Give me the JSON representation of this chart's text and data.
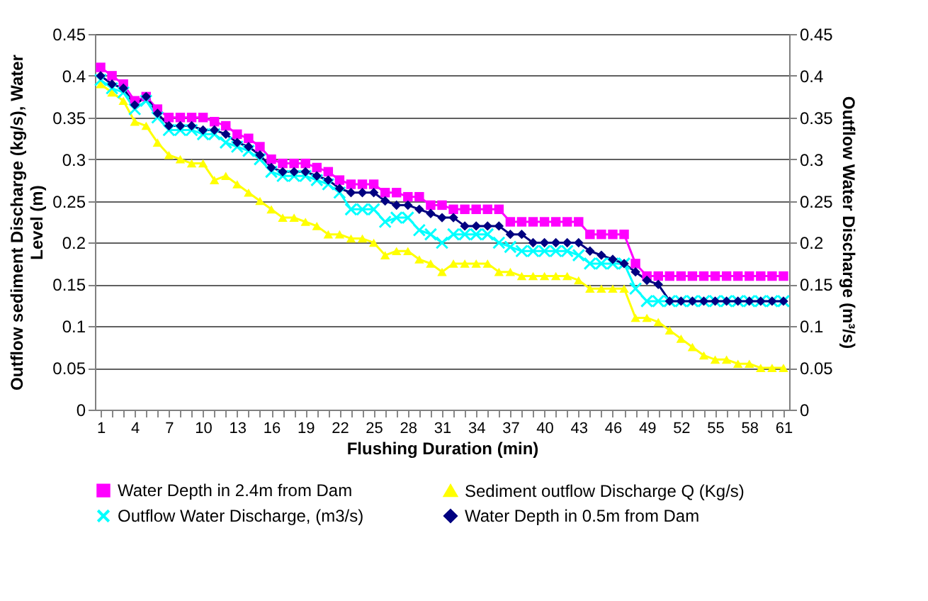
{
  "chart_data": {
    "type": "line",
    "xlabel": "Flushing Duration (min)",
    "ylabel": "Outflow sediment Discharge (kg/s), Water Level (m)",
    "y2label": "Outflow Water Discharge (m³/s)",
    "categories": [
      "1",
      null,
      null,
      "4",
      null,
      null,
      "7",
      null,
      null,
      "10",
      null,
      null,
      "13",
      null,
      null,
      "16",
      null,
      null,
      "19",
      null,
      null,
      "22",
      null,
      null,
      "25",
      null,
      null,
      "28",
      null,
      null,
      "31",
      null,
      null,
      "34",
      null,
      null,
      "37",
      null,
      null,
      "40",
      null,
      null,
      "43",
      null,
      null,
      "46",
      null,
      null,
      "49",
      null,
      null,
      "52",
      null,
      null,
      "55",
      null,
      null,
      "58",
      null,
      null,
      "61"
    ],
    "ylim": [
      0,
      0.45
    ],
    "yticks": [
      {
        "value": 0,
        "label": "0"
      },
      0.05,
      {
        "value": 0.1,
        "label": "0.1"
      },
      0.15,
      {
        "value": 0.2,
        "label": "0.2"
      },
      0.25,
      {
        "value": 0.3,
        "label": "0.3"
      },
      0.35,
      {
        "value": 0.4,
        "label": "0.4"
      },
      0.45
    ],
    "y2lim": [
      0,
      0.45
    ],
    "y2ticks": [
      {
        "value": 0,
        "label": "0"
      },
      0.05,
      {
        "value": 0.1,
        "label": "0.1"
      },
      0.15,
      {
        "value": 0.2,
        "label": "0.2"
      },
      0.25,
      {
        "value": 0.3,
        "label": "0.3"
      },
      0.35,
      {
        "value": 0.4,
        "label": "0.4"
      },
      0.45
    ],
    "grid": "y",
    "legend": "bottom",
    "line_style": "solid",
    "series": [
      {
        "name": "Water Depth in 2.4m from Dam",
        "color": "#ff00ff",
        "marker": "square",
        "values": [
          0.41,
          0.4,
          0.39,
          0.37,
          0.375,
          0.36,
          0.35,
          0.35,
          0.35,
          0.35,
          0.345,
          0.34,
          0.33,
          0.325,
          0.315,
          0.3,
          0.295,
          0.295,
          0.295,
          0.29,
          0.285,
          0.275,
          0.27,
          0.27,
          0.27,
          0.26,
          0.26,
          0.255,
          0.255,
          0.245,
          0.245,
          0.24,
          0.24,
          0.24,
          0.24,
          0.24,
          0.225,
          0.225,
          0.225,
          0.225,
          0.225,
          0.225,
          0.225,
          0.21,
          0.21,
          0.21,
          0.21,
          0.175,
          0.16,
          0.16,
          0.16,
          0.16,
          0.16,
          0.16,
          0.16,
          0.16,
          0.16,
          0.16,
          0.16,
          0.16,
          0.16
        ]
      },
      {
        "name": "Sediment outflow Discharge Q  (Kg/s)",
        "color": "#ffff00",
        "marker": "triangle",
        "values": [
          0.39,
          0.38,
          0.37,
          0.345,
          0.34,
          0.32,
          0.305,
          0.3,
          0.295,
          0.295,
          0.275,
          0.28,
          0.27,
          0.26,
          0.25,
          0.24,
          0.23,
          0.23,
          0.225,
          0.22,
          0.21,
          0.21,
          0.205,
          0.205,
          0.2,
          0.185,
          0.19,
          0.19,
          0.18,
          0.175,
          0.165,
          0.175,
          0.175,
          0.175,
          0.175,
          0.165,
          0.165,
          0.16,
          0.16,
          0.16,
          0.16,
          0.16,
          0.155,
          0.145,
          0.145,
          0.145,
          0.145,
          0.11,
          0.11,
          0.105,
          0.095,
          0.085,
          0.075,
          0.065,
          0.06,
          0.06,
          0.055,
          0.055,
          0.05,
          0.05,
          0.05
        ]
      },
      {
        "name": "Outflow Water Discharge,  (m3/s)",
        "color": "#00ffff",
        "marker": "cross",
        "values": [
          0.395,
          0.385,
          0.38,
          0.36,
          0.37,
          0.35,
          0.335,
          0.335,
          0.335,
          0.33,
          0.33,
          0.32,
          0.315,
          0.31,
          0.3,
          0.285,
          0.28,
          0.28,
          0.28,
          0.275,
          0.27,
          0.26,
          0.24,
          0.24,
          0.24,
          0.225,
          0.23,
          0.23,
          0.215,
          0.21,
          0.2,
          0.21,
          0.21,
          0.21,
          0.21,
          0.2,
          0.195,
          0.19,
          0.19,
          0.19,
          0.19,
          0.19,
          0.185,
          0.175,
          0.175,
          0.175,
          0.175,
          0.145,
          0.13,
          0.13,
          0.13,
          0.13,
          0.13,
          0.13,
          0.13,
          0.13,
          0.13,
          0.13,
          0.13,
          0.13,
          0.13
        ]
      },
      {
        "name": "Water Depth in 0.5m from Dam",
        "color": "#000080",
        "marker": "diamond",
        "values": [
          0.4,
          0.39,
          0.385,
          0.365,
          0.375,
          0.355,
          0.34,
          0.34,
          0.34,
          0.335,
          0.335,
          0.33,
          0.32,
          0.315,
          0.305,
          0.29,
          0.285,
          0.285,
          0.285,
          0.28,
          0.275,
          0.265,
          0.26,
          0.26,
          0.26,
          0.25,
          0.245,
          0.245,
          0.24,
          0.235,
          0.23,
          0.23,
          0.22,
          0.22,
          0.22,
          0.22,
          0.21,
          0.21,
          0.2,
          0.2,
          0.2,
          0.2,
          0.2,
          0.19,
          0.185,
          0.18,
          0.175,
          0.165,
          0.155,
          0.15,
          0.13,
          0.13,
          0.13,
          0.13,
          0.13,
          0.13,
          0.13,
          0.13,
          0.13,
          0.13,
          0.13
        ]
      }
    ]
  }
}
